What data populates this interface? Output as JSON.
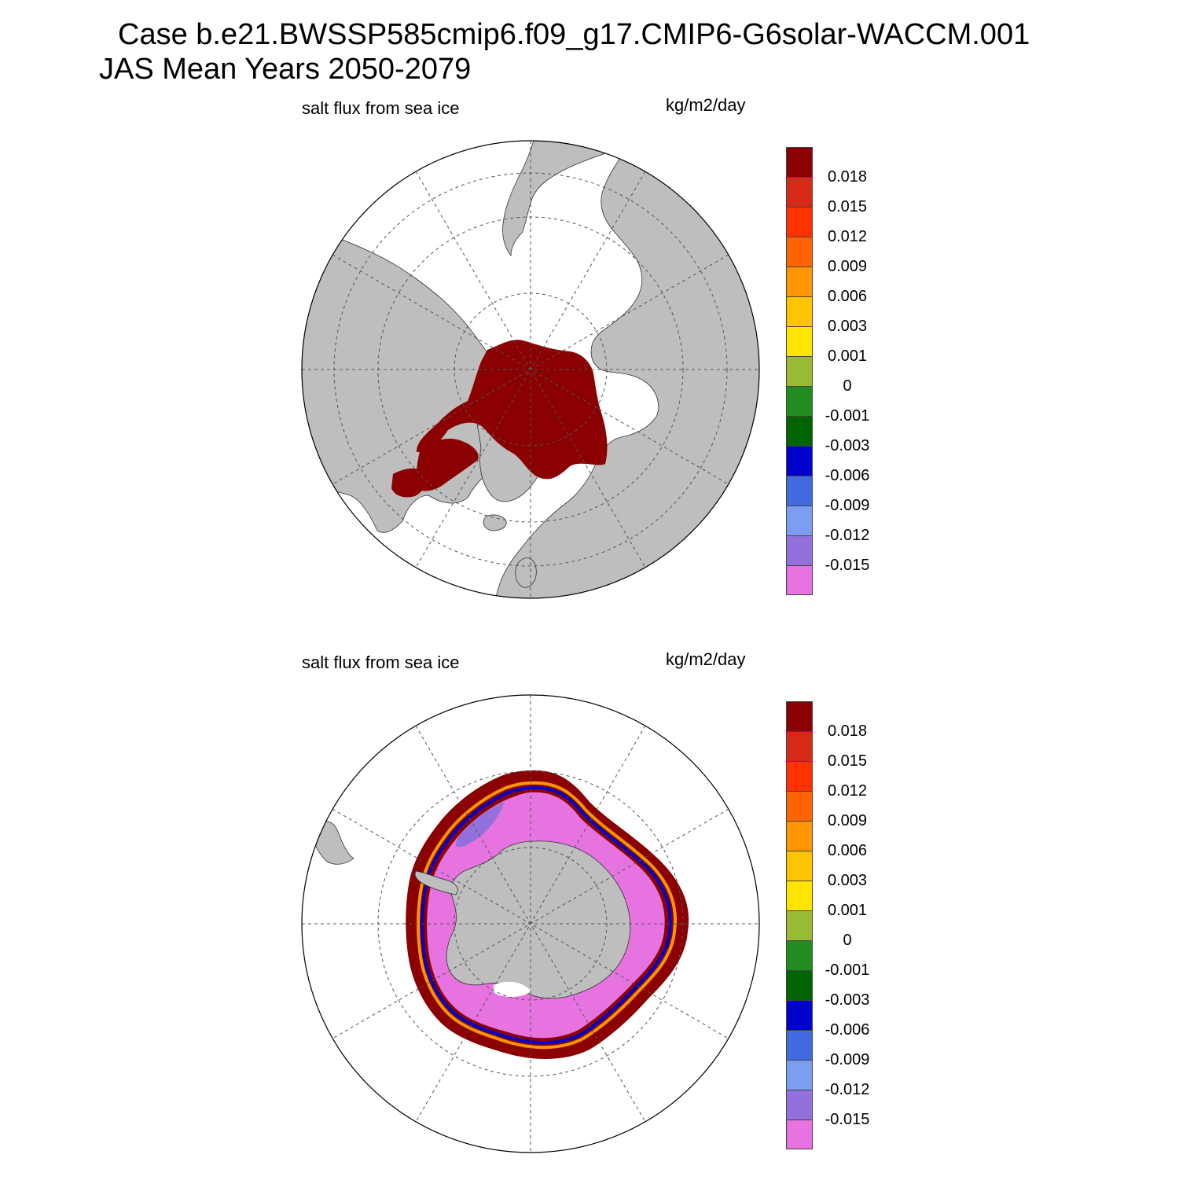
{
  "header": {
    "line1": "Case b.e21.BWSSP585cmip6.f09_g17.CMIP6-G6solar-WACCM.001",
    "line2": "JAS Mean   Years 2050-2079"
  },
  "panels": [
    {
      "id": "north",
      "left_label": "salt flux from sea ice",
      "right_label": "kg/m2/day"
    },
    {
      "id": "south",
      "left_label": "salt flux from sea ice",
      "right_label": "kg/m2/day"
    }
  ],
  "colorbar": {
    "labels": [
      "0.018",
      "0.015",
      "0.012",
      "0.009",
      "0.006",
      "0.003",
      "0.001",
      "0",
      "-0.001",
      "-0.003",
      "-0.006",
      "-0.009",
      "-0.012",
      "-0.015"
    ],
    "colors": [
      "#8b0000",
      "#d42a16",
      "#ff3200",
      "#ff6400",
      "#ff9600",
      "#ffc400",
      "#ffe400",
      "#99bb33",
      "#228b22",
      "#006400",
      "#0000cd",
      "#4169e1",
      "#7b9ef0",
      "#9370db",
      "#e673df"
    ]
  },
  "colors": {
    "land": "#bebebe",
    "ocean": "#ffffff",
    "grid": "#555555"
  }
}
